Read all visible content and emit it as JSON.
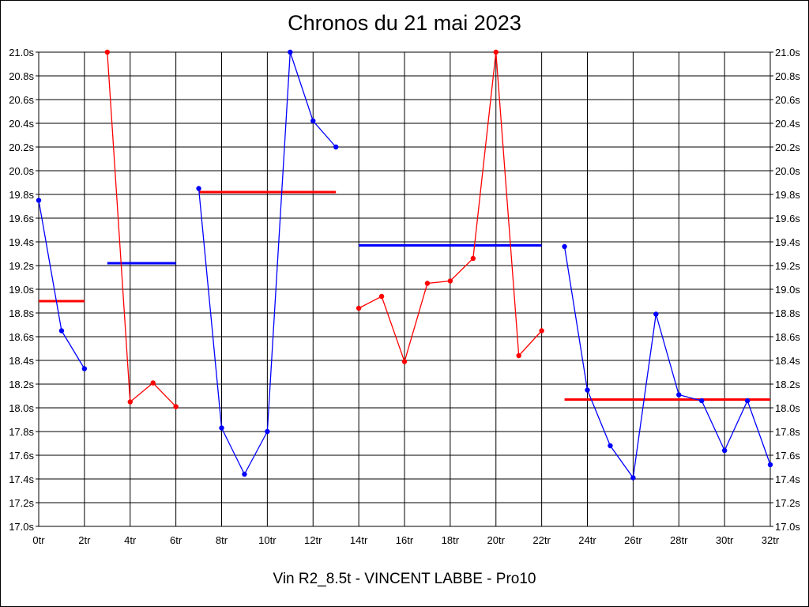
{
  "chart_data": {
    "type": "line",
    "title": "Chronos du 21 mai 2023",
    "footer": "Vin R2_8.5t - VINCENT LABBE - Pro10",
    "xlim": [
      0,
      32
    ],
    "ylim": [
      17.0,
      21.0
    ],
    "x_ticks": [
      "0tr",
      "2tr",
      "4tr",
      "6tr",
      "8tr",
      "10tr",
      "12tr",
      "14tr",
      "16tr",
      "18tr",
      "20tr",
      "22tr",
      "24tr",
      "26tr",
      "28tr",
      "30tr",
      "32tr"
    ],
    "y_ticks": [
      "21.0s",
      "20.8s",
      "20.6s",
      "20.4s",
      "20.2s",
      "20.0s",
      "19.8s",
      "19.6s",
      "19.4s",
      "19.2s",
      "19.0s",
      "18.8s",
      "18.6s",
      "18.4s",
      "18.2s",
      "18.0s",
      "17.8s",
      "17.6s",
      "17.4s",
      "17.2s",
      "17.0s"
    ],
    "y_ticks_right": [
      "21.0s",
      "20.8s",
      "20.6s",
      "20.4s",
      "20.2s",
      "20.0s",
      "19.8s",
      "19.6s",
      "19.4s",
      "19.2s",
      "19.0s",
      "18.8s",
      "18.6s",
      "18.4s",
      "18.2s",
      "18.0s",
      "17.8s",
      "17.6s",
      "17.4s",
      "17.2s",
      "17.0s"
    ],
    "grid": true,
    "series": [
      {
        "color": "#0000ff",
        "points": [
          [
            0,
            19.75
          ],
          [
            1,
            18.65
          ],
          [
            2,
            18.33
          ]
        ],
        "average": 18.9,
        "average_range": [
          0,
          2
        ],
        "average_color": "#ff0000"
      },
      {
        "color": "#ff0000",
        "points": [
          [
            3,
            21.0
          ],
          [
            4,
            18.05
          ],
          [
            5,
            18.21
          ],
          [
            6,
            18.01
          ]
        ],
        "average": 19.22,
        "average_range": [
          3,
          6
        ],
        "average_color": "#0000ff"
      },
      {
        "color": "#0000ff",
        "points": [
          [
            7,
            19.85
          ],
          [
            8,
            17.83
          ],
          [
            9,
            17.44
          ],
          [
            10,
            17.8
          ],
          [
            11,
            21.0
          ],
          [
            12,
            20.42
          ],
          [
            13,
            20.2
          ]
        ],
        "average": 19.82,
        "average_range": [
          7,
          13
        ],
        "average_color": "#ff0000"
      },
      {
        "color": "#ff0000",
        "points": [
          [
            14,
            18.84
          ],
          [
            15,
            18.94
          ],
          [
            16,
            18.39
          ],
          [
            17,
            19.05
          ],
          [
            18,
            19.07
          ],
          [
            19,
            19.26
          ],
          [
            20,
            21.0
          ],
          [
            21,
            18.44
          ],
          [
            22,
            18.65
          ]
        ],
        "average": 19.37,
        "average_range": [
          14,
          22
        ],
        "average_color": "#0000ff"
      },
      {
        "color": "#0000ff",
        "points": [
          [
            23,
            19.36
          ],
          [
            24,
            18.15
          ],
          [
            25,
            17.68
          ],
          [
            26,
            17.41
          ],
          [
            27,
            18.79
          ],
          [
            28,
            18.11
          ],
          [
            29,
            18.06
          ],
          [
            30,
            17.64
          ],
          [
            31,
            18.06
          ],
          [
            32,
            17.52
          ]
        ],
        "average": 18.07,
        "average_range": [
          23,
          32
        ],
        "average_color": "#ff0000"
      }
    ]
  }
}
